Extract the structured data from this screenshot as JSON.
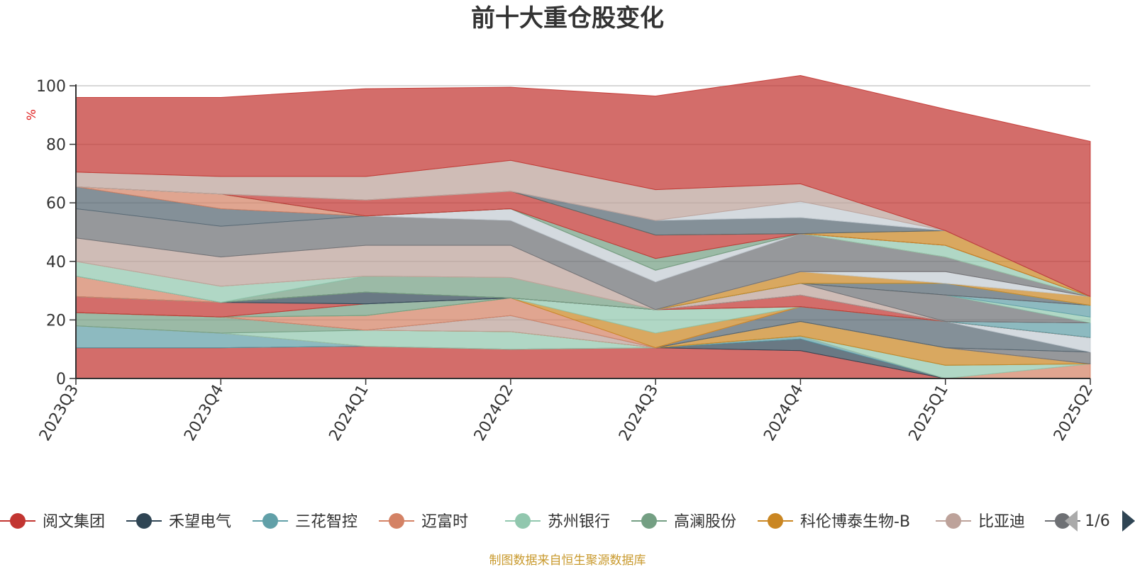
{
  "chart_data": {
    "type": "area",
    "title": "前十大重仓股变化",
    "ylabel": "%",
    "ylim": [
      0,
      100
    ],
    "yticks": [
      "0",
      "20",
      "40",
      "60",
      "80",
      "100"
    ],
    "categories": [
      "2023Q3",
      "2023Q4",
      "2024Q1",
      "2024Q2",
      "2024Q3",
      "2024Q4",
      "2025Q1",
      "2025Q2"
    ],
    "grid": true,
    "legend_position": "bottom",
    "series": [
      {
        "name": "阅文集团",
        "color": "#c23531",
        "values": [
          10.5,
          10.5,
          11,
          10,
          10.5,
          9.5,
          0,
          0
        ]
      },
      {
        "name": "禾望电气",
        "color": "#2f4554",
        "values": [
          0,
          0,
          0,
          0,
          0,
          4,
          0,
          0
        ]
      },
      {
        "name": "三花智控",
        "color": "#61a0a8",
        "values": [
          7.5,
          5,
          0,
          0,
          0,
          1,
          0,
          0
        ]
      },
      {
        "name": "迈富时",
        "color": "#d48265",
        "values": [
          0,
          0,
          0,
          0,
          0,
          0,
          0,
          5
        ]
      },
      {
        "name": "苏州银行",
        "color": "#91c7ae",
        "values": [
          0,
          0,
          5.5,
          6,
          0,
          0,
          4.5,
          0
        ]
      },
      {
        "name": "高澜股份",
        "color": "#749f83",
        "values": [
          4.5,
          5.5,
          0,
          0,
          0,
          0,
          0,
          0
        ]
      },
      {
        "name": "科伦博泰生物-B",
        "color": "#ca8622",
        "values": [
          0,
          0,
          0,
          0,
          0,
          5,
          6,
          0
        ]
      },
      {
        "name": "比亚迪",
        "color": "#bda29a",
        "values": [
          0,
          0,
          0,
          5.5,
          0,
          0,
          0,
          0
        ]
      },
      {
        "name": "",
        "color": "#6e7074",
        "values": [
          0,
          0,
          0,
          0,
          0,
          0,
          0,
          4
        ]
      },
      {
        "name": "",
        "color": "#546570",
        "values": [
          0,
          0,
          0,
          0,
          0,
          5,
          9,
          0
        ]
      },
      {
        "name": "",
        "color": "#c4ccd3",
        "values": [
          0,
          0,
          0,
          0,
          0,
          0,
          0,
          5
        ]
      },
      {
        "name": "",
        "color": "#d48265",
        "values": [
          0,
          0,
          5,
          6,
          0,
          0,
          0,
          0
        ]
      },
      {
        "name": "",
        "color": "#ca8622",
        "values": [
          0,
          0,
          0,
          0,
          5,
          0,
          0,
          0
        ]
      },
      {
        "name": "",
        "color": "#91c7ae",
        "values": [
          0,
          0,
          0,
          0,
          8,
          0,
          0,
          0
        ]
      },
      {
        "name": "",
        "color": "#749f83",
        "values": [
          0,
          0,
          4,
          0,
          0,
          0,
          0,
          0
        ]
      },
      {
        "name": "",
        "color": "#c23531",
        "values": [
          5.5,
          5,
          0,
          0,
          0,
          4,
          0,
          0
        ]
      },
      {
        "name": "",
        "color": "#61a0a8",
        "values": [
          0,
          0,
          0,
          0,
          0,
          0,
          0,
          5
        ]
      },
      {
        "name": "",
        "color": "#2f4554",
        "values": [
          0,
          0,
          4,
          0,
          0,
          0,
          0,
          0
        ]
      },
      {
        "name": "",
        "color": "#bda29a",
        "values": [
          0,
          0,
          0,
          0,
          0,
          4,
          0,
          0
        ]
      },
      {
        "name": "",
        "color": "#6e7074",
        "values": [
          0,
          0,
          0,
          0,
          0,
          0,
          9,
          0
        ]
      },
      {
        "name": "",
        "color": "#91c7ae",
        "values": [
          0,
          0,
          0,
          0,
          0,
          0,
          0,
          2
        ]
      },
      {
        "name": "",
        "color": "#61a0a8",
        "values": [
          0,
          0,
          0,
          0,
          0,
          0,
          0,
          4
        ]
      },
      {
        "name": "",
        "color": "#d48265",
        "values": [
          7,
          0,
          0,
          0,
          0,
          0,
          0,
          0
        ]
      },
      {
        "name": "",
        "color": "#546570",
        "values": [
          0,
          0,
          0,
          0,
          0,
          0,
          4,
          0
        ]
      },
      {
        "name": "",
        "color": "#749f83",
        "values": [
          0,
          0,
          5.5,
          7,
          0,
          0,
          0,
          0
        ]
      },
      {
        "name": "",
        "color": "#91c7ae",
        "values": [
          5,
          5.5,
          0,
          0,
          0,
          0,
          0,
          0
        ]
      },
      {
        "name": "",
        "color": "#ca8622",
        "values": [
          0,
          0,
          0,
          0,
          0,
          4,
          0,
          3
        ]
      },
      {
        "name": "",
        "color": "#c4ccd3",
        "values": [
          0,
          0,
          0,
          0,
          0,
          0,
          4,
          0
        ]
      },
      {
        "name": "",
        "color": "#bda29a",
        "values": [
          8,
          10,
          10.5,
          11,
          0,
          0,
          0,
          0
        ]
      },
      {
        "name": "",
        "color": "#6e7074",
        "values": [
          10,
          10.5,
          10,
          8.5,
          9.5,
          13,
          5,
          0
        ]
      },
      {
        "name": "",
        "color": "#c4ccd3",
        "values": [
          0,
          0,
          0,
          4,
          4,
          0,
          0,
          0
        ]
      },
      {
        "name": "",
        "color": "#546570",
        "values": [
          7.5,
          6,
          0,
          0,
          0,
          0,
          0,
          0
        ]
      },
      {
        "name": "",
        "color": "#d48265",
        "values": [
          0,
          5,
          0,
          0,
          0,
          0,
          0,
          0
        ]
      },
      {
        "name": "",
        "color": "#91c7ae",
        "values": [
          0,
          0,
          0,
          0,
          0,
          0,
          4,
          0
        ]
      },
      {
        "name": "",
        "color": "#749f83",
        "values": [
          0,
          0,
          0,
          0,
          4,
          0,
          0,
          0
        ]
      },
      {
        "name": "",
        "color": "#c23531",
        "values": [
          0,
          0,
          5.5,
          6,
          8,
          0,
          0,
          0
        ]
      },
      {
        "name": "",
        "color": "#ca8622",
        "values": [
          0,
          0,
          0,
          0,
          0,
          0,
          5,
          0
        ]
      },
      {
        "name": "",
        "color": "#546570",
        "values": [
          0,
          0,
          0,
          0,
          5,
          5.5,
          0,
          0
        ]
      },
      {
        "name": "",
        "color": "#c4ccd3",
        "values": [
          0,
          0,
          0,
          0,
          0,
          5.5,
          0,
          0
        ]
      },
      {
        "name": "",
        "color": "#bda29a",
        "values": [
          5,
          6,
          8,
          10.5,
          10.5,
          6,
          0,
          0
        ]
      },
      {
        "name": "",
        "color": "#c23531",
        "values": [
          25.5,
          27,
          30,
          25,
          32,
          37,
          41.5,
          53
        ]
      }
    ]
  },
  "legend": {
    "items": [
      {
        "label": "阅文集团",
        "color": "#c23531"
      },
      {
        "label": "禾望电气",
        "color": "#2f4554"
      },
      {
        "label": "三花智控",
        "color": "#61a0a8"
      },
      {
        "label": "迈富时",
        "color": "#d48265"
      },
      {
        "label": "苏州银行",
        "color": "#91c7ae"
      },
      {
        "label": "高澜股份",
        "color": "#749f83"
      },
      {
        "label": "科伦博泰生物-B",
        "color": "#ca8622"
      },
      {
        "label": "比亚迪",
        "color": "#bda29a"
      },
      {
        "label": "",
        "color": "#6e7074"
      }
    ],
    "page": "1/6"
  },
  "footer": "制图数据来自恒生聚源数据库"
}
